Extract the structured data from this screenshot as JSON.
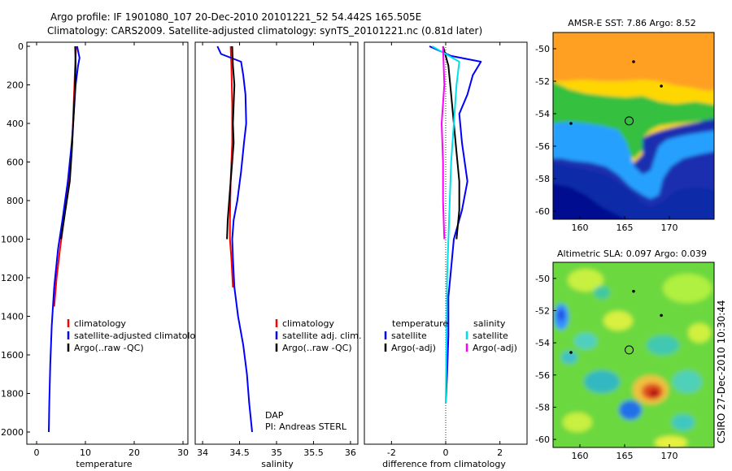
{
  "header": {
    "line1": "Argo profile: IF 1901080_107 20-Dec-2010 20101221_52 54.442S 165.505E",
    "line2": "Climatology: CARS2009. Satellite-adjusted climatology: synTS_20101221.nc (0.81d later)"
  },
  "side_stamp": "CSIRO 27-Dec-2010 10:30:44",
  "colors": {
    "climatology": "#ff0000",
    "satellite": "#0000ff",
    "argo": "#000000",
    "satellite_diff": "#00e0e8",
    "argo_sal_diff": "#ff00ff"
  },
  "chart_data": [
    {
      "type": "line",
      "id": "temperature",
      "xlabel": "temperature",
      "ylabel": "",
      "xlim": [
        -2,
        31
      ],
      "ylim": [
        2050,
        0
      ],
      "xticks": [
        0,
        10,
        20,
        30
      ],
      "yticks": [
        0,
        200,
        400,
        600,
        800,
        1000,
        1200,
        1400,
        1600,
        1800,
        2000
      ],
      "legend": [
        {
          "label": "climatology",
          "color": "#ff0000"
        },
        {
          "label": "satellite-adjusted climatology",
          "color": "#0000ff"
        },
        {
          "label": "Argo(..raw -QC)",
          "color": "#000000"
        }
      ],
      "series": [
        {
          "name": "climatology",
          "color": "#ff0000",
          "points": [
            [
              8.1,
              0
            ],
            [
              7.9,
              100
            ],
            [
              7.6,
              300
            ],
            [
              7.3,
              500
            ],
            [
              6.6,
              700
            ],
            [
              5.6,
              900
            ],
            [
              4.8,
              1050
            ],
            [
              4.1,
              1200
            ],
            [
              3.6,
              1350
            ]
          ]
        },
        {
          "name": "satellite-adjusted climatology",
          "color": "#0000ff",
          "points": [
            [
              8.3,
              0
            ],
            [
              8.8,
              60
            ],
            [
              8.5,
              100
            ],
            [
              8.0,
              200
            ],
            [
              7.5,
              400
            ],
            [
              7.2,
              500
            ],
            [
              6.4,
              700
            ],
            [
              5.3,
              900
            ],
            [
              4.4,
              1050
            ],
            [
              3.6,
              1250
            ],
            [
              3.1,
              1450
            ],
            [
              2.8,
              1650
            ],
            [
              2.6,
              1850
            ],
            [
              2.5,
              2000
            ]
          ]
        },
        {
          "name": "Argo(..raw -QC)",
          "color": "#000000",
          "points": [
            [
              7.9,
              0
            ],
            [
              8.0,
              100
            ],
            [
              7.8,
              250
            ],
            [
              7.5,
              400
            ],
            [
              7.2,
              550
            ],
            [
              6.8,
              700
            ],
            [
              6.2,
              800
            ],
            [
              5.6,
              900
            ],
            [
              5.0,
              1000
            ]
          ]
        }
      ]
    },
    {
      "type": "line",
      "id": "salinity",
      "xlabel": "salinity",
      "ylabel": "",
      "xlim": [
        33.9,
        36.1
      ],
      "ylim": [
        2050,
        0
      ],
      "xticks": [
        34,
        34.5,
        35,
        35.5,
        36
      ],
      "legend": [
        {
          "label": "climatology",
          "color": "#ff0000"
        },
        {
          "label": "satellite adj. clim.",
          "color": "#0000ff"
        },
        {
          "label": "Argo(..raw -QC)",
          "color": "#000000"
        }
      ],
      "annotation": [
        "DAP",
        "PI: Andreas STERL"
      ],
      "series": [
        {
          "name": "climatology",
          "color": "#ff0000",
          "points": [
            [
              34.38,
              0
            ],
            [
              34.39,
              100
            ],
            [
              34.4,
              300
            ],
            [
              34.4,
              500
            ],
            [
              34.38,
              700
            ],
            [
              34.37,
              900
            ],
            [
              34.37,
              1000
            ],
            [
              34.39,
              1100
            ],
            [
              34.41,
              1250
            ]
          ]
        },
        {
          "name": "satellite adj. clim.",
          "color": "#0000ff",
          "points": [
            [
              34.2,
              0
            ],
            [
              34.25,
              40
            ],
            [
              34.52,
              80
            ],
            [
              34.55,
              150
            ],
            [
              34.58,
              250
            ],
            [
              34.59,
              400
            ],
            [
              34.56,
              500
            ],
            [
              34.52,
              650
            ],
            [
              34.47,
              800
            ],
            [
              34.42,
              900
            ],
            [
              34.4,
              1000
            ],
            [
              34.41,
              1100
            ],
            [
              34.43,
              1250
            ],
            [
              34.48,
              1400
            ],
            [
              34.55,
              1550
            ],
            [
              34.6,
              1700
            ],
            [
              34.63,
              1850
            ],
            [
              34.67,
              2000
            ]
          ]
        },
        {
          "name": "Argo(..raw -QC)",
          "color": "#000000",
          "points": [
            [
              34.4,
              0
            ],
            [
              34.41,
              100
            ],
            [
              34.43,
              200
            ],
            [
              34.42,
              300
            ],
            [
              34.41,
              400
            ],
            [
              34.42,
              500
            ],
            [
              34.4,
              600
            ],
            [
              34.38,
              700
            ],
            [
              34.36,
              800
            ],
            [
              34.34,
              900
            ],
            [
              34.33,
              1000
            ]
          ]
        }
      ]
    },
    {
      "type": "line",
      "id": "difference",
      "xlabel": "difference from climatology",
      "ylabel": "",
      "xlim": [
        -3,
        3
      ],
      "ylim": [
        2050,
        0
      ],
      "xticks": [
        -2,
        0,
        2
      ],
      "legend_groups": [
        {
          "heading": "temperature",
          "items": [
            {
              "label": "satellite",
              "color": "#0000ff"
            },
            {
              "label": "Argo(-adj)",
              "color": "#000000"
            }
          ]
        },
        {
          "heading": "salinity",
          "items": [
            {
              "label": "satellite",
              "color": "#00e0e8"
            },
            {
              "label": "Argo(-adj)",
              "color": "#ff00ff"
            }
          ]
        }
      ],
      "series": [
        {
          "name": "temperature satellite",
          "color": "#0000ff",
          "points": [
            [
              -0.6,
              0
            ],
            [
              0.2,
              50
            ],
            [
              1.3,
              80
            ],
            [
              1.0,
              150
            ],
            [
              0.8,
              250
            ],
            [
              0.5,
              350
            ],
            [
              0.6,
              500
            ],
            [
              0.8,
              700
            ],
            [
              0.6,
              850
            ],
            [
              0.3,
              1000
            ],
            [
              0.2,
              1150
            ],
            [
              0.1,
              1300
            ],
            [
              0.1,
              1500
            ],
            [
              0.05,
              1700
            ],
            [
              0.0,
              1850
            ]
          ]
        },
        {
          "name": "temperature Argo(-adj)",
          "color": "#000000",
          "points": [
            [
              -0.1,
              0
            ],
            [
              0.1,
              100
            ],
            [
              0.2,
              250
            ],
            [
              0.3,
              400
            ],
            [
              0.4,
              550
            ],
            [
              0.5,
              700
            ],
            [
              0.5,
              850
            ],
            [
              0.4,
              1000
            ]
          ]
        },
        {
          "name": "salinity satellite",
          "color": "#00e0e8",
          "points": [
            [
              -0.5,
              0
            ],
            [
              0.5,
              80
            ],
            [
              0.4,
              200
            ],
            [
              0.3,
              400
            ],
            [
              0.2,
              600
            ],
            [
              0.15,
              800
            ],
            [
              0.1,
              1000
            ],
            [
              0.05,
              1200
            ],
            [
              0.04,
              1400
            ],
            [
              0.02,
              1600
            ],
            [
              0.0,
              1850
            ]
          ]
        },
        {
          "name": "salinity Argo(-adj)",
          "color": "#ff00ff",
          "points": [
            [
              -0.1,
              0
            ],
            [
              -0.05,
              200
            ],
            [
              -0.15,
              400
            ],
            [
              -0.1,
              600
            ],
            [
              -0.1,
              800
            ],
            [
              -0.05,
              1000
            ]
          ]
        }
      ]
    },
    {
      "type": "heatmap",
      "id": "sst",
      "title": "AMSR-E SST: 7.86  Argo: 8.52",
      "xlim": [
        157,
        175
      ],
      "ylim": [
        -60.5,
        -49
      ],
      "xticks": [
        160,
        165,
        170
      ],
      "yticks": [
        -50,
        -52,
        -54,
        -56,
        -58,
        -60
      ],
      "marker": {
        "lon": 165.505,
        "lat": -54.442
      }
    },
    {
      "type": "heatmap",
      "id": "sla",
      "title": "Altimetric SLA: 0.097  Argo: 0.039",
      "xlim": [
        157,
        175
      ],
      "ylim": [
        -60.5,
        -49
      ],
      "xticks": [
        160,
        165,
        170
      ],
      "yticks": [
        -50,
        -52,
        -54,
        -56,
        -58,
        -60
      ],
      "marker": {
        "lon": 165.505,
        "lat": -54.442
      }
    }
  ]
}
